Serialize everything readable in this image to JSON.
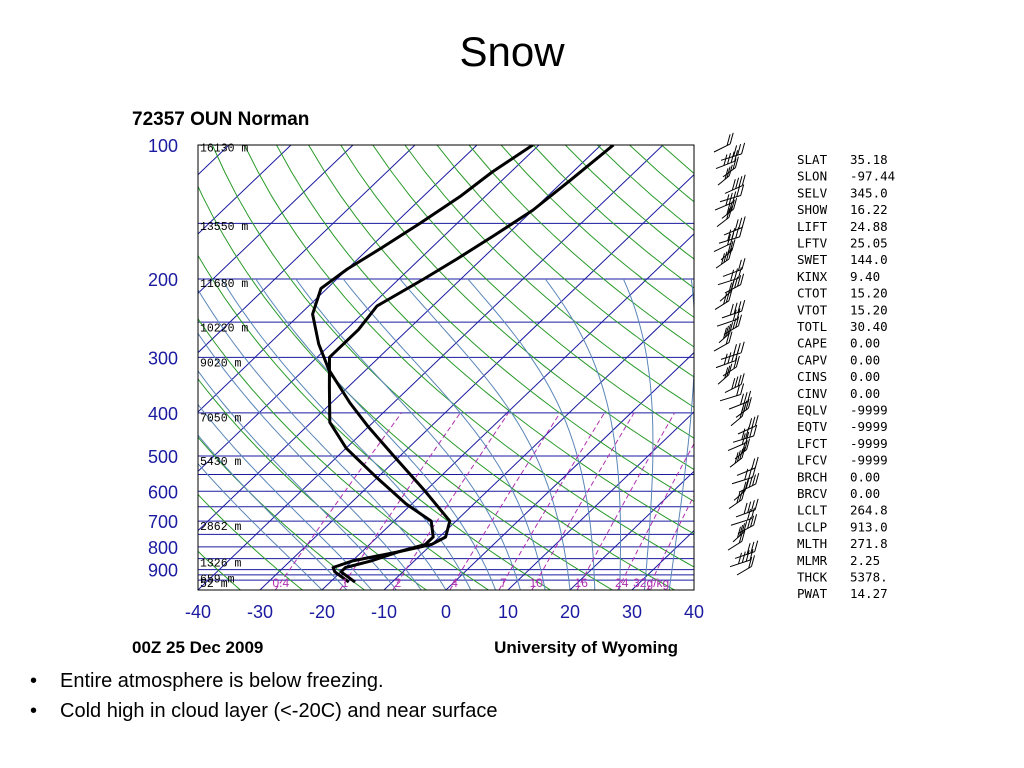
{
  "slide": {
    "title": "Snow",
    "bullets": [
      "Entire atmosphere is below freezing.",
      "Cold high in cloud layer (<-20C) and near surface"
    ]
  },
  "chart_data": {
    "type": "line",
    "title": "72357 OUN Norman",
    "footer_left": "00Z 25 Dec 2009",
    "footer_right": "University of Wyoming",
    "xlim": [
      -40,
      40
    ],
    "x_ticks": [
      "-40",
      "-30",
      "-20",
      "-10",
      "0",
      "10",
      "20",
      "30",
      "40"
    ],
    "pressure_ticks": [
      "100",
      "200",
      "300",
      "400",
      "500",
      "600",
      "700",
      "800",
      "900"
    ],
    "height_labels": [
      "16130 m",
      "13550 m",
      "11680 m",
      "10220 m",
      "9020 m",
      "7050 m",
      "5430 m",
      "2862 m",
      "1326 m",
      "659 m",
      "52 m"
    ],
    "mixing_ratio_labels": [
      "0.4",
      "1",
      "2",
      "4",
      "7",
      "10",
      "16",
      "24",
      "32g/kg"
    ],
    "grid": true,
    "series": [
      {
        "points": [
          {
            "p": 100,
            "t": -61
          },
          {
            "p": 115,
            "t": -63
          },
          {
            "p": 130,
            "t": -64
          },
          {
            "p": 150,
            "t": -66
          },
          {
            "p": 170,
            "t": -68
          },
          {
            "p": 190,
            "t": -70
          },
          {
            "p": 210,
            "t": -71
          },
          {
            "p": 240,
            "t": -68
          },
          {
            "p": 280,
            "t": -62
          },
          {
            "p": 320,
            "t": -56
          },
          {
            "p": 380,
            "t": -47
          },
          {
            "p": 430,
            "t": -40
          },
          {
            "p": 500,
            "t": -31
          },
          {
            "p": 600,
            "t": -20
          },
          {
            "p": 700,
            "t": -11
          },
          {
            "p": 760,
            "t": -9
          },
          {
            "p": 790,
            "t": -10
          },
          {
            "p": 820,
            "t": -14
          },
          {
            "p": 860,
            "t": -17
          },
          {
            "p": 890,
            "t": -20
          },
          {
            "p": 910,
            "t": -20
          },
          {
            "p": 960,
            "t": -16
          }
        ]
      },
      {
        "points": [
          {
            "p": 100,
            "t": -48
          },
          {
            "p": 120,
            "t": -49
          },
          {
            "p": 140,
            "t": -50
          },
          {
            "p": 160,
            "t": -52
          },
          {
            "p": 180,
            "t": -54
          },
          {
            "p": 200,
            "t": -56
          },
          {
            "p": 230,
            "t": -59
          },
          {
            "p": 260,
            "t": -58
          },
          {
            "p": 300,
            "t": -58
          },
          {
            "p": 350,
            "t": -53
          },
          {
            "p": 420,
            "t": -47
          },
          {
            "p": 480,
            "t": -40
          },
          {
            "p": 560,
            "t": -30
          },
          {
            "p": 640,
            "t": -21
          },
          {
            "p": 700,
            "t": -14
          },
          {
            "p": 760,
            "t": -11
          },
          {
            "p": 790,
            "t": -11
          },
          {
            "p": 820,
            "t": -14
          },
          {
            "p": 860,
            "t": -20
          },
          {
            "p": 890,
            "t": -22
          },
          {
            "p": 910,
            "t": -21
          },
          {
            "p": 960,
            "t": -17
          }
        ]
      }
    ],
    "wind_barb_count": 52,
    "indices": [
      {
        "name": "SLAT",
        "value": "35.18"
      },
      {
        "name": "SLON",
        "value": "-97.44"
      },
      {
        "name": "SELV",
        "value": "345.0"
      },
      {
        "name": "SHOW",
        "value": "16.22"
      },
      {
        "name": "LIFT",
        "value": "24.88"
      },
      {
        "name": "LFTV",
        "value": "25.05"
      },
      {
        "name": "SWET",
        "value": "144.0"
      },
      {
        "name": "KINX",
        "value": "9.40"
      },
      {
        "name": "CTOT",
        "value": "15.20"
      },
      {
        "name": "VTOT",
        "value": "15.20"
      },
      {
        "name": "TOTL",
        "value": "30.40"
      },
      {
        "name": "CAPE",
        "value": "0.00"
      },
      {
        "name": "CAPV",
        "value": "0.00"
      },
      {
        "name": "CINS",
        "value": "0.00"
      },
      {
        "name": "CINV",
        "value": "0.00"
      },
      {
        "name": "EQLV",
        "value": "-9999"
      },
      {
        "name": "EQTV",
        "value": "-9999"
      },
      {
        "name": "LFCT",
        "value": "-9999"
      },
      {
        "name": "LFCV",
        "value": "-9999"
      },
      {
        "name": "BRCH",
        "value": "0.00"
      },
      {
        "name": "BRCV",
        "value": "0.00"
      },
      {
        "name": "LCLT",
        "value": "264.8"
      },
      {
        "name": "LCLP",
        "value": "913.0"
      },
      {
        "name": "MLTH",
        "value": "271.8"
      },
      {
        "name": "MLMR",
        "value": "2.25"
      },
      {
        "name": "THCK",
        "value": "5378."
      },
      {
        "name": "PWAT",
        "value": "14.27"
      }
    ]
  }
}
